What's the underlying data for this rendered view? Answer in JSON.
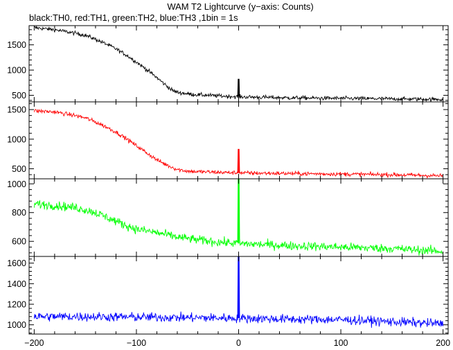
{
  "chart_data": {
    "type": "line",
    "title": "WAM T2 Lightcurve (y−axis: Counts)",
    "subtitle": "black:TH0, red:TH1, green:TH2, blue:TH3 ,1bin = 1s",
    "xlabel": "",
    "ylabel": "",
    "xlim": [
      -205,
      205
    ],
    "x_ticks": [
      -200,
      -100,
      0,
      100,
      200
    ],
    "x_tick_labels": [
      "−200",
      "−100",
      "0",
      "100",
      "200"
    ],
    "grid": false,
    "legend": "none",
    "panels": [
      {
        "name": "TH0",
        "color": "#000000",
        "ylim": [
          370,
          1880
        ],
        "y_ticks": [
          500,
          1000,
          1500
        ],
        "y_tick_labels": [
          "500",
          "1000",
          "1500"
        ],
        "profile": [
          [
            -200,
            1840
          ],
          [
            -180,
            1800
          ],
          [
            -160,
            1730
          ],
          [
            -150,
            1690
          ],
          [
            -140,
            1610
          ],
          [
            -130,
            1520
          ],
          [
            -120,
            1420
          ],
          [
            -110,
            1300
          ],
          [
            -100,
            1160
          ],
          [
            -90,
            1010
          ],
          [
            -80,
            850
          ],
          [
            -70,
            680
          ],
          [
            -65,
            600
          ],
          [
            -60,
            560
          ],
          [
            -50,
            530
          ],
          [
            -40,
            510
          ],
          [
            -20,
            490
          ],
          [
            0,
            470
          ],
          [
            50,
            450
          ],
          [
            100,
            440
          ],
          [
            150,
            430
          ],
          [
            200,
            420
          ]
        ],
        "noise": 28,
        "spike": {
          "x": 0,
          "y": 820
        }
      },
      {
        "name": "TH1",
        "color": "#ff0000",
        "ylim": [
          330,
          1630
        ],
        "y_ticks": [
          500,
          1000,
          1500
        ],
        "y_tick_labels": [
          "500",
          "1000",
          "1500"
        ],
        "profile": [
          [
            -200,
            1480
          ],
          [
            -180,
            1460
          ],
          [
            -160,
            1400
          ],
          [
            -150,
            1360
          ],
          [
            -140,
            1290
          ],
          [
            -130,
            1210
          ],
          [
            -120,
            1120
          ],
          [
            -110,
            1010
          ],
          [
            -100,
            890
          ],
          [
            -90,
            770
          ],
          [
            -80,
            650
          ],
          [
            -70,
            560
          ],
          [
            -60,
            490
          ],
          [
            -50,
            460
          ],
          [
            -40,
            450
          ],
          [
            -20,
            440
          ],
          [
            0,
            430
          ],
          [
            50,
            420
          ],
          [
            100,
            410
          ],
          [
            150,
            400
          ],
          [
            200,
            380
          ]
        ],
        "noise": 25,
        "spike": {
          "x": 0,
          "y": 830
        }
      },
      {
        "name": "TH2",
        "color": "#00ff00",
        "ylim": [
          495,
          1035
        ],
        "y_ticks": [
          600,
          800,
          1000
        ],
        "y_tick_labels": [
          "600",
          "800",
          "1000"
        ],
        "profile": [
          [
            -200,
            860
          ],
          [
            -180,
            850
          ],
          [
            -160,
            835
          ],
          [
            -150,
            820
          ],
          [
            -140,
            800
          ],
          [
            -130,
            770
          ],
          [
            -120,
            740
          ],
          [
            -110,
            710
          ],
          [
            -100,
            685
          ],
          [
            -80,
            660
          ],
          [
            -60,
            630
          ],
          [
            -40,
            610
          ],
          [
            -20,
            595
          ],
          [
            0,
            585
          ],
          [
            50,
            570
          ],
          [
            100,
            560
          ],
          [
            150,
            550
          ],
          [
            200,
            530
          ]
        ],
        "noise": 22,
        "spike": {
          "x": 0,
          "y": 1040
        }
      },
      {
        "name": "TH3",
        "color": "#0000ff",
        "ylim": [
          910,
          1665
        ],
        "y_ticks": [
          1000,
          1200,
          1400,
          1600
        ],
        "y_tick_labels": [
          "1000",
          "1200",
          "1400",
          "1600"
        ],
        "profile": [
          [
            -200,
            1080
          ],
          [
            -150,
            1080
          ],
          [
            -100,
            1075
          ],
          [
            -50,
            1070
          ],
          [
            0,
            1065
          ],
          [
            50,
            1055
          ],
          [
            100,
            1050
          ],
          [
            150,
            1030
          ],
          [
            200,
            1010
          ]
        ],
        "noise": 32,
        "spike": {
          "x": 0,
          "y": 1660
        }
      }
    ]
  }
}
